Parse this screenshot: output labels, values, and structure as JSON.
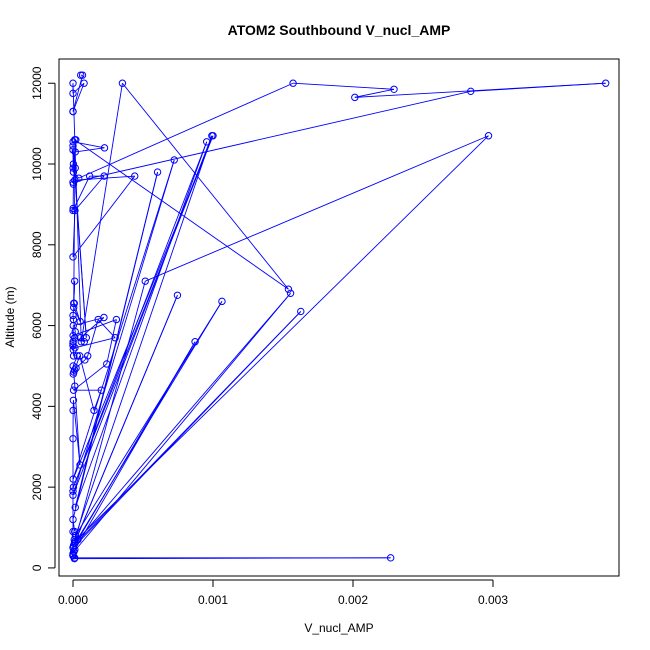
{
  "chart_data": {
    "type": "line",
    "title": "ATOM2 Southbound V_nucl_AMP",
    "xlabel": "V_nucl_AMP",
    "ylabel": "Altitude (m)",
    "xlim": [
      -0.0001,
      0.0039
    ],
    "ylim": [
      -200,
      12600
    ],
    "x_ticks": [
      0.0,
      0.001,
      0.002,
      0.003
    ],
    "x_tick_labels": [
      "0.000",
      "0.001",
      "0.002",
      "0.003"
    ],
    "y_ticks": [
      0,
      2000,
      4000,
      6000,
      8000,
      10000,
      12000
    ],
    "y_tick_labels": [
      "0",
      "2000",
      "4000",
      "6000",
      "8000",
      "10000",
      "12000"
    ],
    "grid": false,
    "legend": "none",
    "series_color": "#0000ff",
    "marker": "open-circle",
    "series": [
      {
        "x": [
          5.5e-05,
          6.8e-05,
          0,
          0,
          7.9e-05,
          0,
          0,
          5.9e-05,
          0.000353,
          0.001539,
          1.2e-05,
          1.6e-05,
          0.000225,
          1e-06,
          0,
          9.5e-05,
          0,
          1e-06,
          3e-06,
          4.1e-05,
          0.001572,
          0.002293,
          0.002013,
          0.003805,
          0.002841,
          0,
          1.6e-05,
          3e-06,
          2e-05,
          3e-06,
          1e-06,
          0,
          0.000119,
          0.000222,
          1.4e-05,
          0,
          0.000441,
          1.3e-05,
          5e-06,
          1.2e-05,
          5e-06,
          5.1e-05,
          9e-06,
          0,
          3e-06,
          1.6e-05,
          1.2e-05,
          8.1e-05,
          5.3e-05,
          0.000221,
          2e-06,
          1e-06,
          2e-06,
          0,
          1.4e-05,
          0.000301,
          0.00018,
          0.000105,
          8.5e-05,
          2.2e-05,
          2e-06,
          6e-06,
          1.1e-05,
          4.8e-05,
          0.00015,
          0.000202,
          4e-06,
          0.000241,
          0.00031,
          1e-06,
          0,
          4e-06,
          3.1e-05,
          1e-06,
          1.3e-05,
          5e-05,
          3e-06,
          1e-06,
          0,
          0,
          0,
          0,
          0,
          1.2e-05,
          0.002269,
          1e-05,
          0,
          0,
          0,
          5e-06,
          1.3e-05,
          0.000872,
          3.6e-05,
          1.7e-05,
          0.001064,
          1.2e-05,
          0.001554,
          7e-06,
          2e-06,
          0.001627,
          4e-06,
          0.000746,
          9e-06,
          0.000516,
          0.002968,
          1.3e-05,
          9e-06,
          0.000992,
          0,
          0.000723,
          1e-06,
          0.001,
          3e-06,
          0.000955,
          1.6e-05,
          0.000604,
          0,
          1.2e-05
        ],
        "y": [
          12200,
          12200,
          11300,
          11300,
          12000,
          11750,
          12000,
          5600,
          12000,
          6900,
          10600,
          10300,
          10400,
          10550,
          10450,
          5700,
          10350,
          9900,
          9800,
          9650,
          12000,
          11850,
          11650,
          12000,
          11800,
          9550,
          9900,
          10000,
          10600,
          9500,
          8900,
          8850,
          9700,
          9700,
          8850,
          7700,
          9700,
          9600,
          6550,
          7100,
          6450,
          6100,
          6550,
          6250,
          6150,
          5850,
          5700,
          5600,
          5700,
          6200,
          6000,
          5600,
          5400,
          5500,
          5450,
          5700,
          6150,
          5250,
          5150,
          4950,
          4800,
          4850,
          4900,
          5250,
          3900,
          4400,
          4400,
          5050,
          6150,
          5750,
          5550,
          5250,
          5250,
          5000,
          4500,
          2550,
          4150,
          3900,
          3200,
          1900,
          900,
          500,
          300,
          250,
          250,
          230,
          300,
          320,
          350,
          400,
          450,
          5600,
          700,
          800,
          6600,
          600,
          6800,
          400,
          500,
          6350,
          550,
          6750,
          600,
          7100,
          10700,
          650,
          700,
          10700,
          1800,
          10100,
          2200,
          10700,
          2000,
          10550,
          1500,
          9800,
          1200,
          900
        ]
      }
    ]
  }
}
